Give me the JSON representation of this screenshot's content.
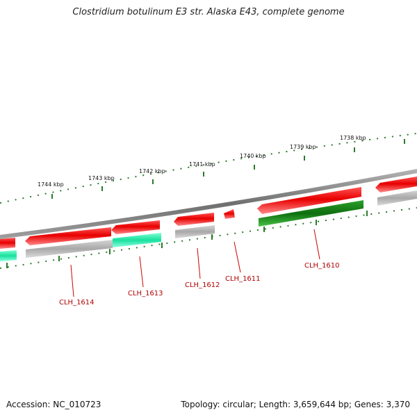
{
  "title": "Clostridium botulinum E3 str. Alaska E43, complete genome",
  "accession": "Accession: NC_010723",
  "summary": "Topology: circular; Length: 3,659,644 bp; Genes: 3,370",
  "kbp_labels": [
    "1744 kbp",
    "1743 kbp",
    "1742 kbp",
    "1741 kbp",
    "1740 kbp",
    "1739 kbp",
    "1738 kbp"
  ],
  "gene_labels": [
    "CLH_1614",
    "CLH_1613",
    "CLH_1612",
    "CLH_1611",
    "CLH_1610"
  ],
  "colors": {
    "forward_cds": "#ee1111",
    "forward_gene": "#b9b9b9",
    "rna_gene": "#22e8a8",
    "highlight_gene": "#1f8f1f",
    "label": "#b00000",
    "tick": "#2a7a2a",
    "backbone": "#8a8a8a"
  }
}
